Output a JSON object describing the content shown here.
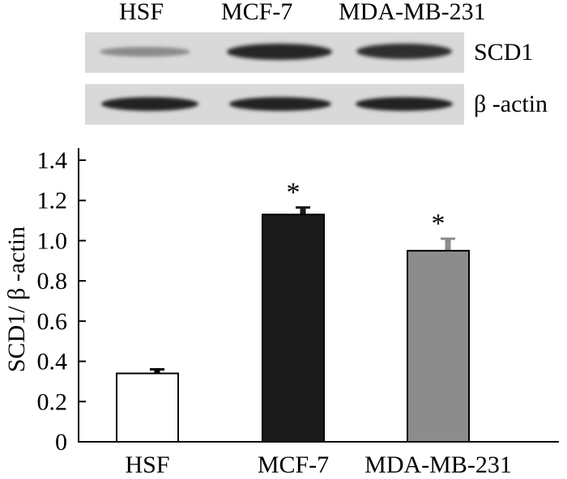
{
  "blot": {
    "lane_labels": [
      "HSF",
      "MCF-7",
      "MDA-MB-231"
    ],
    "rows": [
      {
        "label": "SCD1",
        "band_intensity": [
          0.3,
          0.85,
          0.8
        ]
      },
      {
        "label": "β -actin",
        "band_intensity": [
          0.9,
          0.9,
          0.9
        ]
      }
    ]
  },
  "chart_data": {
    "type": "bar",
    "categories": [
      "HSF",
      "MCF-7",
      "MDA-MB-231"
    ],
    "values": [
      0.34,
      1.13,
      0.95
    ],
    "errors": [
      0.02,
      0.035,
      0.06
    ],
    "significance": [
      "",
      "*",
      "*"
    ],
    "colors": [
      "#ffffff",
      "#1a1a1a",
      "#8c8c8c"
    ],
    "ylabel": "SCD1/ β -actin",
    "xlabel": "",
    "ylim": [
      0,
      1.4
    ],
    "yticks": [
      "0",
      "0.2",
      "0.4",
      "0.6",
      "0.8",
      "1.0",
      "1.2",
      "1.4"
    ],
    "ytick_values": [
      0,
      0.2,
      0.4,
      0.6,
      0.8,
      1.0,
      1.2,
      1.4
    ],
    "grid": false
  }
}
